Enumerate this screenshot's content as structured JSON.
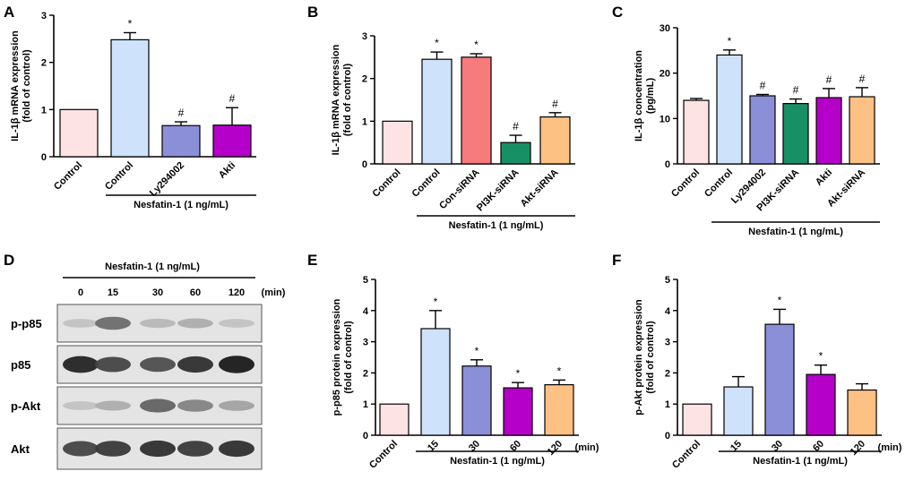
{
  "chart_data": [
    {
      "panel": "A",
      "type": "bar",
      "categories": [
        "Control",
        "Control",
        "Ly294002",
        "Akti"
      ],
      "values": [
        1.0,
        2.48,
        0.66,
        0.67
      ],
      "errors": [
        0,
        0.15,
        0.08,
        0.37
      ],
      "colors": [
        "#fde3e4",
        "#cfe2fb",
        "#8b8fd8",
        "#b400c9"
      ],
      "significance": [
        "",
        "*",
        "#",
        "#"
      ],
      "ylabel": [
        "IL-1β mRNA expression",
        "(fold of control)"
      ],
      "ylim": [
        0,
        3
      ],
      "yticks": [
        0,
        1,
        2,
        3
      ],
      "group_label": "Nesfatin-1 (1 ng/mL)",
      "group_span": [
        1,
        3
      ],
      "unit_suffix": ""
    },
    {
      "panel": "B",
      "type": "bar",
      "categories": [
        "Control",
        "Control",
        "Con-siRNA",
        "PI3K-siRNA",
        "Akt-siRNA"
      ],
      "values": [
        1.0,
        2.45,
        2.5,
        0.5,
        1.1
      ],
      "errors": [
        0,
        0.17,
        0.08,
        0.17,
        0.1
      ],
      "colors": [
        "#fde3e4",
        "#cfe2fb",
        "#f77b7c",
        "#189065",
        "#fdc184"
      ],
      "significance": [
        "",
        "*",
        "*",
        "#",
        "#"
      ],
      "ylabel": [
        "IL-1β mRNA expression",
        "(fold of control)"
      ],
      "ylim": [
        0,
        3
      ],
      "yticks": [
        0,
        1,
        2,
        3
      ],
      "group_label": "Nesfatin-1 (1 ng/mL)",
      "group_span": [
        1,
        4
      ],
      "unit_suffix": ""
    },
    {
      "panel": "C",
      "type": "bar",
      "categories": [
        "Control",
        "Control",
        "Ly294002",
        "PI3K-siRNA",
        "Akti",
        "Akt-siRNA"
      ],
      "values": [
        14.0,
        24.0,
        15.0,
        13.3,
        14.6,
        14.8
      ],
      "errors": [
        0.4,
        1.1,
        0.3,
        1.0,
        2.0,
        2.0
      ],
      "colors": [
        "#fde3e4",
        "#cfe2fb",
        "#8b8fd8",
        "#189065",
        "#b400c9",
        "#fdc184"
      ],
      "significance": [
        "",
        "*",
        "#",
        "#",
        "#",
        "#"
      ],
      "ylabel": [
        "IL-1β concentration",
        "(pg/mL)"
      ],
      "ylim": [
        0,
        30
      ],
      "yticks": [
        0,
        10,
        20,
        30
      ],
      "group_label": "Nesfatin-1 (1 ng/mL)",
      "group_span": [
        1,
        5
      ],
      "unit_suffix": ""
    },
    {
      "panel": "E",
      "type": "bar",
      "categories": [
        "Control",
        "15",
        "30",
        "60",
        "120"
      ],
      "values": [
        1.0,
        3.42,
        2.22,
        1.52,
        1.62
      ],
      "errors": [
        0,
        0.58,
        0.2,
        0.17,
        0.15
      ],
      "colors": [
        "#fde3e4",
        "#cfe2fb",
        "#8b8fd8",
        "#b400c9",
        "#fdc184"
      ],
      "significance": [
        "",
        "*",
        "*",
        "*",
        "*"
      ],
      "ylabel": [
        "p-p85 protein expression",
        "(fold of control)"
      ],
      "ylim": [
        0,
        5
      ],
      "yticks": [
        0,
        1,
        2,
        3,
        4,
        5
      ],
      "group_label": "Nesfatin-1 (1 ng/mL)",
      "group_span": [
        1,
        4
      ],
      "unit_suffix": "(min)"
    },
    {
      "panel": "F",
      "type": "bar",
      "categories": [
        "Control",
        "15",
        "30",
        "60",
        "120"
      ],
      "values": [
        1.0,
        1.55,
        3.56,
        1.95,
        1.45
      ],
      "errors": [
        0,
        0.33,
        0.48,
        0.3,
        0.2
      ],
      "colors": [
        "#fde3e4",
        "#cfe2fb",
        "#8b8fd8",
        "#b400c9",
        "#fdc184"
      ],
      "significance": [
        "",
        "",
        "*",
        "*",
        ""
      ],
      "ylabel": [
        "p-Akt protein expression",
        "(fold of control)"
      ],
      "ylim": [
        0,
        5
      ],
      "yticks": [
        0,
        1,
        2,
        3,
        4,
        5
      ],
      "group_label": "Nesfatin-1 (1 ng/mL)",
      "group_span": [
        1,
        4
      ],
      "unit_suffix": "(min)"
    }
  ],
  "blot": {
    "panel": "D",
    "title": "Nesfatin-1 (1 ng/mL)",
    "timepoints": [
      "0",
      "15",
      "30",
      "60",
      "120"
    ],
    "unit": "(min)",
    "rows": [
      {
        "label": "p-p85",
        "intensities": [
          0.15,
          0.55,
          0.2,
          0.25,
          0.15
        ]
      },
      {
        "label": "p85",
        "intensities": [
          0.9,
          0.75,
          0.7,
          0.85,
          0.95
        ]
      },
      {
        "label": "p-Akt",
        "intensities": [
          0.15,
          0.25,
          0.6,
          0.45,
          0.3
        ]
      },
      {
        "label": "Akt",
        "intensities": [
          0.75,
          0.8,
          0.85,
          0.8,
          0.85
        ]
      }
    ]
  }
}
